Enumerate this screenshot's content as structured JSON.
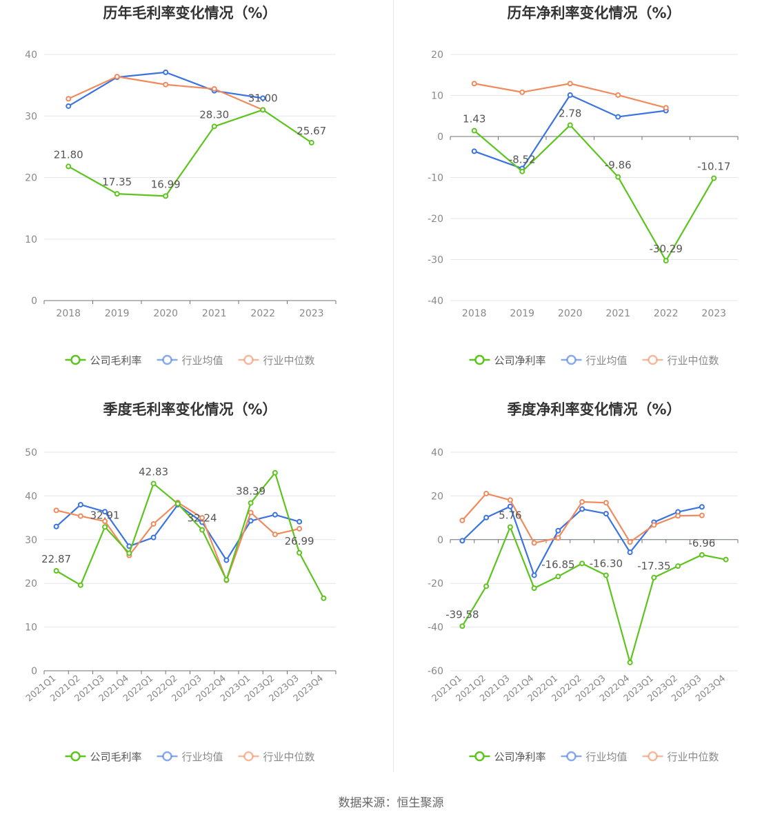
{
  "colors": {
    "company": "#5cc41d",
    "industry_avg": "#3a73e0",
    "industry_median": "#f08a5d"
  },
  "footer": "数据来源：恒生聚源",
  "chart_data": [
    {
      "type": "line",
      "title": "历年毛利率变化情况（%）",
      "categories": [
        "2018",
        "2019",
        "2020",
        "2021",
        "2022",
        "2023"
      ],
      "ylim": [
        0,
        40
      ],
      "yticks": [
        0,
        10,
        20,
        30,
        40
      ],
      "series": [
        {
          "name": "公司毛利率",
          "key": "company",
          "values": [
            21.8,
            17.35,
            16.99,
            28.3,
            31.0,
            25.67
          ],
          "labels": [
            "21.80",
            "17.35",
            "16.99",
            "28.30",
            "31.00",
            "25.67"
          ]
        },
        {
          "name": "行业均值",
          "key": "industry_avg",
          "values": [
            31.6,
            36.3,
            37.1,
            34.1,
            32.9,
            null
          ]
        },
        {
          "name": "行业中位数",
          "key": "industry_median",
          "values": [
            32.8,
            36.4,
            35.1,
            34.4,
            31.0,
            null
          ]
        }
      ],
      "legend": "bottom",
      "grid": true
    },
    {
      "type": "line",
      "title": "历年净利率变化情况（%）",
      "categories": [
        "2018",
        "2019",
        "2020",
        "2021",
        "2022",
        "2023"
      ],
      "ylim": [
        -40,
        20
      ],
      "yticks": [
        -40,
        -30,
        -20,
        -10,
        0,
        10,
        20
      ],
      "series": [
        {
          "name": "公司净利率",
          "key": "company",
          "values": [
            1.43,
            -8.52,
            2.78,
            -9.86,
            -30.29,
            -10.17
          ],
          "labels": [
            "1.43",
            "-8.52",
            "2.78",
            "-9.86",
            "-30.29",
            "-10.17"
          ]
        },
        {
          "name": "行业均值",
          "key": "industry_avg",
          "values": [
            -3.6,
            -7.8,
            10.1,
            4.8,
            6.3,
            null
          ]
        },
        {
          "name": "行业中位数",
          "key": "industry_median",
          "values": [
            12.9,
            10.8,
            12.9,
            10.1,
            7.0,
            null
          ]
        }
      ],
      "legend": "bottom",
      "grid": true
    },
    {
      "type": "line",
      "title": "季度毛利率变化情况（%）",
      "categories": [
        "2021Q1",
        "2021Q2",
        "2021Q3",
        "2021Q4",
        "2022Q1",
        "2022Q2",
        "2022Q3",
        "2022Q4",
        "2023Q1",
        "2023Q2",
        "2023Q3",
        "2023Q4"
      ],
      "ylim": [
        0,
        50
      ],
      "yticks": [
        0,
        10,
        20,
        30,
        40,
        50
      ],
      "series": [
        {
          "name": "公司毛利率",
          "key": "company",
          "values": [
            22.87,
            19.6,
            32.91,
            26.9,
            42.83,
            38.2,
            32.24,
            20.8,
            38.39,
            45.3,
            26.99,
            16.6
          ],
          "labels": [
            "22.87",
            "",
            "32.91",
            "",
            "42.83",
            "",
            "32.24",
            "",
            "38.39",
            "",
            "26.99",
            ""
          ]
        },
        {
          "name": "行业均值",
          "key": "industry_avg",
          "values": [
            33.0,
            38.0,
            36.4,
            28.5,
            30.5,
            38.0,
            34.0,
            25.3,
            34.3,
            35.7,
            34.1,
            null
          ]
        },
        {
          "name": "行业中位数",
          "key": "industry_median",
          "values": [
            36.7,
            35.4,
            34.2,
            26.4,
            33.6,
            38.5,
            35.0,
            20.7,
            36.2,
            31.2,
            32.5,
            null
          ]
        }
      ],
      "legend": "bottom",
      "grid": true
    },
    {
      "type": "line",
      "title": "季度净利率变化情况（%）",
      "categories": [
        "2021Q1",
        "2021Q2",
        "2021Q3",
        "2021Q4",
        "2022Q1",
        "2022Q2",
        "2022Q3",
        "2022Q4",
        "2023Q1",
        "2023Q2",
        "2023Q3",
        "2023Q4"
      ],
      "ylim": [
        -60,
        40
      ],
      "yticks": [
        -60,
        -40,
        -20,
        0,
        20,
        40
      ],
      "series": [
        {
          "name": "公司净利率",
          "key": "company",
          "values": [
            -39.58,
            -21.3,
            5.76,
            -22.2,
            -16.85,
            -10.9,
            -16.3,
            -56.2,
            -17.35,
            -12.1,
            -6.96,
            -9.1
          ],
          "labels": [
            "-39.58",
            "",
            "5.76",
            "",
            "-16.85",
            "",
            "-16.30",
            "",
            "-17.35",
            "",
            "-6.96",
            ""
          ]
        },
        {
          "name": "行业均值",
          "key": "industry_avg",
          "values": [
            -0.5,
            10.1,
            15.2,
            -16.3,
            4.1,
            14.0,
            11.9,
            -5.8,
            8.0,
            12.7,
            15.0,
            null
          ]
        },
        {
          "name": "行业中位数",
          "key": "industry_median",
          "values": [
            8.8,
            21.1,
            18.1,
            -1.5,
            0.8,
            17.3,
            16.9,
            -1.1,
            6.7,
            10.9,
            11.1,
            null
          ]
        }
      ],
      "legend": "bottom",
      "grid": true
    }
  ]
}
